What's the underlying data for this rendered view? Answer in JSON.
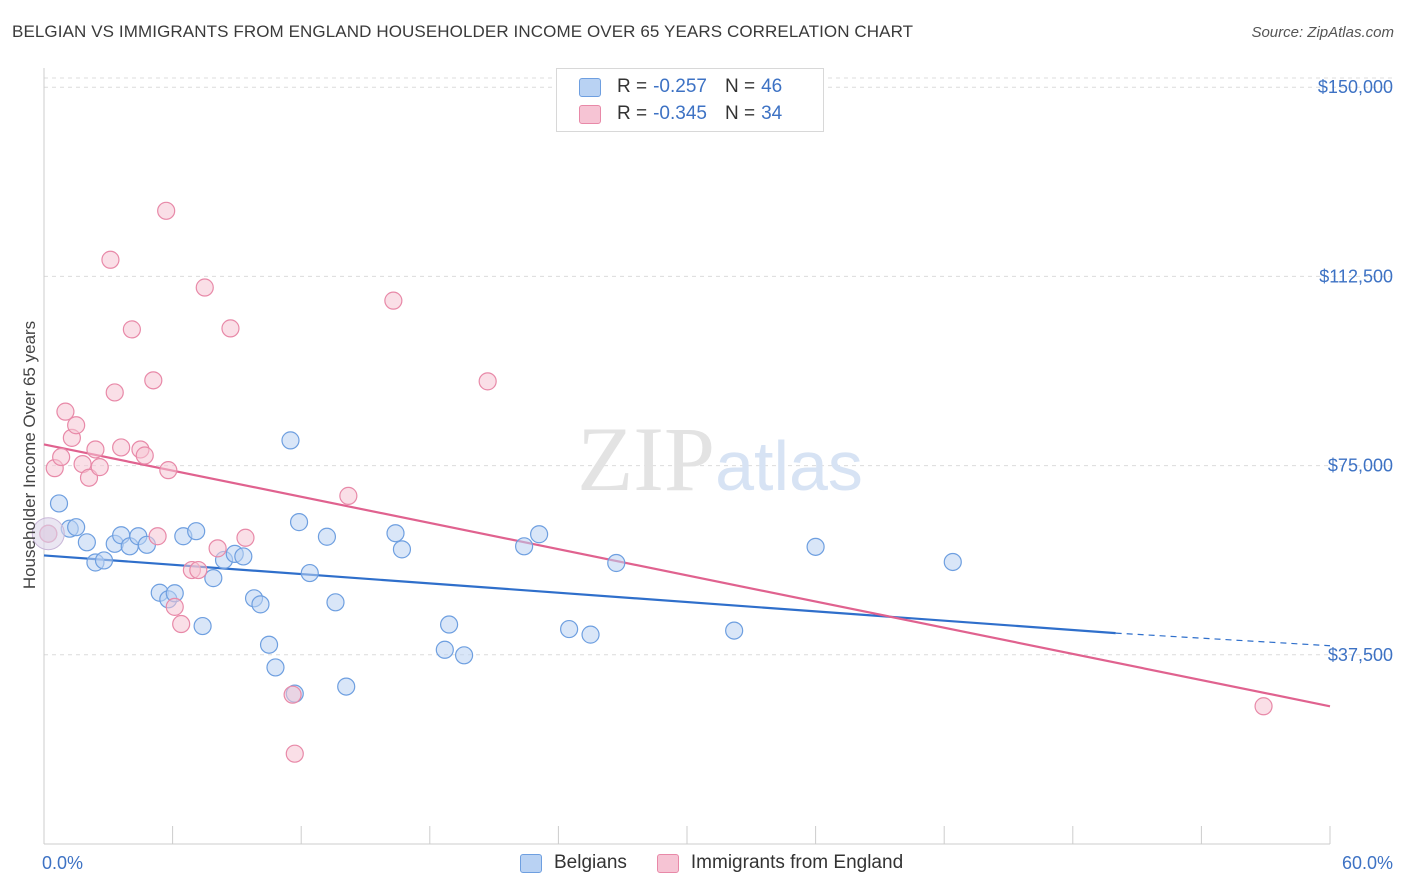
{
  "chart_data": {
    "type": "scatter",
    "title": "BELGIAN VS IMMIGRANTS FROM ENGLAND HOUSEHOLDER INCOME OVER 65 YEARS CORRELATION CHART",
    "source": "Source: ZipAtlas.com",
    "ylabel": "Householder Income Over 65 years",
    "xlabel": "",
    "xlim": [
      0,
      60
    ],
    "ylim": [
      0,
      155000
    ],
    "y_ticks": [
      37500,
      75000,
      112500,
      150000
    ],
    "y_tick_labels": [
      "$37,500",
      "$75,000",
      "$112,500",
      "$150,000"
    ],
    "x_tick_labels": [
      "0.0%",
      "60.0%"
    ],
    "watermark": "ZIPatlas",
    "series": [
      {
        "name": "Belgians",
        "color": "#6e9fe0",
        "fill": "#b9d2f3",
        "R": "-0.257",
        "N": "46",
        "trend": {
          "x0": 0,
          "y0": 57200,
          "x1": 50,
          "y1": 41800,
          "dash_to_x": 60,
          "dash_to_y": 39300
        },
        "points": [
          [
            0.2,
            61500
          ],
          [
            0.7,
            67500
          ],
          [
            1.2,
            62500
          ],
          [
            1.5,
            62800
          ],
          [
            2.0,
            59800
          ],
          [
            2.4,
            55800
          ],
          [
            2.8,
            56200
          ],
          [
            3.3,
            59500
          ],
          [
            3.6,
            61200
          ],
          [
            4.0,
            59000
          ],
          [
            4.4,
            61000
          ],
          [
            4.8,
            59300
          ],
          [
            5.4,
            49800
          ],
          [
            5.8,
            48500
          ],
          [
            6.1,
            49700
          ],
          [
            6.5,
            61000
          ],
          [
            7.1,
            62000
          ],
          [
            7.4,
            43200
          ],
          [
            7.9,
            52700
          ],
          [
            8.4,
            56300
          ],
          [
            8.9,
            57500
          ],
          [
            9.3,
            57000
          ],
          [
            9.8,
            48700
          ],
          [
            10.1,
            47500
          ],
          [
            10.5,
            39500
          ],
          [
            10.8,
            35000
          ],
          [
            11.5,
            80000
          ],
          [
            11.7,
            29800
          ],
          [
            11.9,
            63800
          ],
          [
            12.4,
            53700
          ],
          [
            13.2,
            60900
          ],
          [
            13.6,
            47900
          ],
          [
            14.1,
            31200
          ],
          [
            16.4,
            61600
          ],
          [
            16.7,
            58400
          ],
          [
            18.7,
            38500
          ],
          [
            18.9,
            43500
          ],
          [
            19.6,
            37400
          ],
          [
            22.4,
            59000
          ],
          [
            23.1,
            61400
          ],
          [
            24.5,
            42600
          ],
          [
            25.5,
            41500
          ],
          [
            26.7,
            55700
          ],
          [
            32.2,
            42300
          ],
          [
            36.0,
            58900
          ],
          [
            42.4,
            55900
          ]
        ]
      },
      {
        "name": "Immigrants from England",
        "color": "#e889a8",
        "fill": "#f6c4d4",
        "R": "-0.345",
        "N": "34",
        "trend": {
          "x0": 0,
          "y0": 79200,
          "x1": 60,
          "y1": 27300
        },
        "points": [
          [
            0.2,
            61500
          ],
          [
            0.5,
            74500
          ],
          [
            0.8,
            76700
          ],
          [
            1.0,
            85700
          ],
          [
            1.3,
            80500
          ],
          [
            1.5,
            83000
          ],
          [
            1.8,
            75300
          ],
          [
            2.1,
            72600
          ],
          [
            2.4,
            78200
          ],
          [
            2.6,
            74700
          ],
          [
            3.1,
            115800
          ],
          [
            3.3,
            89500
          ],
          [
            3.6,
            78600
          ],
          [
            4.1,
            102000
          ],
          [
            4.5,
            78200
          ],
          [
            4.7,
            77000
          ],
          [
            5.1,
            91900
          ],
          [
            5.3,
            61000
          ],
          [
            5.7,
            125500
          ],
          [
            5.8,
            74100
          ],
          [
            6.1,
            47000
          ],
          [
            6.4,
            43600
          ],
          [
            6.9,
            54300
          ],
          [
            7.2,
            54300
          ],
          [
            7.5,
            110300
          ],
          [
            8.1,
            58600
          ],
          [
            8.7,
            102200
          ],
          [
            9.4,
            60700
          ],
          [
            11.6,
            29600
          ],
          [
            11.7,
            17900
          ],
          [
            14.2,
            69000
          ],
          [
            16.3,
            107700
          ],
          [
            20.7,
            91700
          ],
          [
            56.9,
            27300
          ]
        ]
      }
    ]
  },
  "legend": {
    "r_label": "R =",
    "n_label": "N ="
  }
}
